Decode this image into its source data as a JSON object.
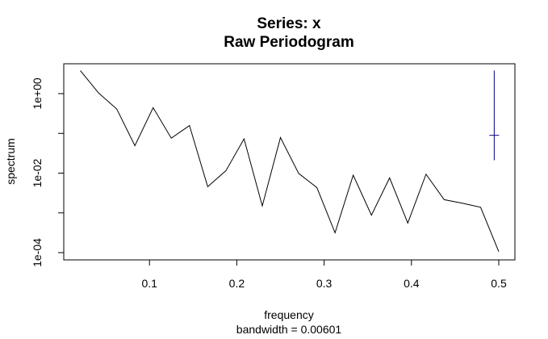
{
  "chart_data": {
    "type": "line",
    "title": "Series: x",
    "subtitle": "Raw Periodogram",
    "xlabel": "frequency",
    "sub_xlabel": "bandwidth = 0.00601",
    "ylabel": "spectrum",
    "y_scale": "log",
    "xlim": [
      0.0,
      0.5
    ],
    "ylim_exponent": [
      -4.2,
      0.75
    ],
    "x_ticks": [
      {
        "value": 0.1,
        "label": "0.1"
      },
      {
        "value": 0.2,
        "label": "0.2"
      },
      {
        "value": 0.3,
        "label": "0.3"
      },
      {
        "value": 0.4,
        "label": "0.4"
      },
      {
        "value": 0.5,
        "label": "0.5"
      }
    ],
    "y_ticks": [
      {
        "exponent": 0,
        "label": "1e+00"
      },
      {
        "exponent": -1,
        "label": ""
      },
      {
        "exponent": -2,
        "label": "1e-02"
      },
      {
        "exponent": -3,
        "label": ""
      },
      {
        "exponent": -4,
        "label": "1e-04"
      }
    ],
    "series": [
      {
        "color": "#000000",
        "x": [
          0.0208,
          0.0417,
          0.0625,
          0.0833,
          0.1042,
          0.125,
          0.1458,
          0.1667,
          0.1875,
          0.2083,
          0.2292,
          0.25,
          0.2708,
          0.2917,
          0.3125,
          0.3333,
          0.3542,
          0.375,
          0.3958,
          0.4167,
          0.4375,
          0.4583,
          0.4792,
          0.5
        ],
        "y": [
          0.58,
          0.0166,
          -0.3862,
          -1.3098,
          -0.3536,
          -1.1211,
          -0.8027,
          -2.3406,
          -1.9404,
          -1.1377,
          -2.8244,
          -1.1049,
          -2.006,
          -2.3625,
          -3.5016,
          -2.0513,
          -3.0571,
          -2.1195,
          -3.2553,
          -2.0279,
          -2.6675,
          -2.7571,
          -2.8585,
          -3.9762
        ]
      }
    ],
    "error_bar": {
      "color": "#00008b",
      "x": 0.4948,
      "center": -1.049,
      "lower": -1.6754,
      "upper": 0.5803
    }
  }
}
